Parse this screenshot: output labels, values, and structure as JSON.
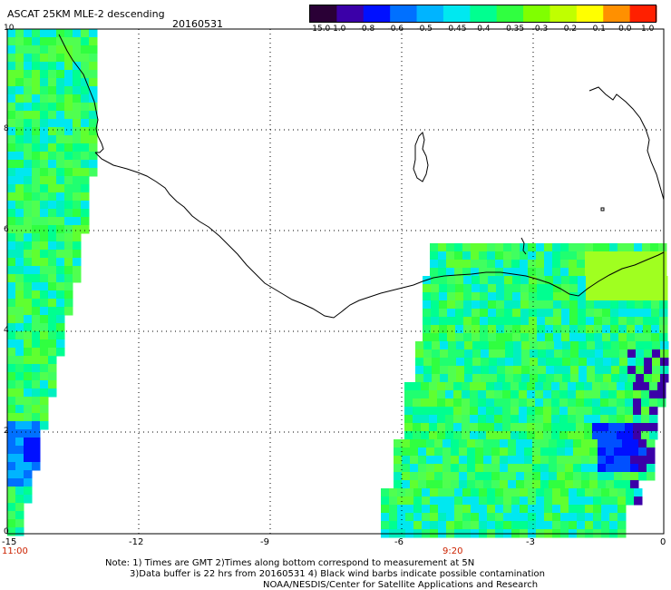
{
  "title": "ASCAT 25KM MLE-2 descending",
  "date": "20160531",
  "colorbar": {
    "labels": [
      "-15.0",
      "-1.0",
      "-0.8",
      "-0.6",
      "-0.5",
      "-0.45",
      "-0.4",
      "-0.35",
      "-0.3",
      "-0.2",
      "-0.1",
      "0.0",
      "1.0"
    ],
    "colors": [
      "#2a0036",
      "#3b00a8",
      "#0010ff",
      "#0070ff",
      "#00b4ff",
      "#00e8f0",
      "#00ff90",
      "#30ff40",
      "#80ff00",
      "#c0ff00",
      "#ffff00",
      "#ff9000",
      "#ff2000"
    ]
  },
  "axes": {
    "x_ticks": [
      "-15",
      "-12",
      "-9",
      "-6",
      "-3",
      "0"
    ],
    "y_ticks": [
      "0",
      "2",
      "4",
      "6",
      "8",
      "10"
    ]
  },
  "times": {
    "left": "11:00",
    "right": "9:20"
  },
  "notes": [
    "Note: 1) Times are GMT 2)Times along bottom correspond to measurement at 5N",
    "3)Data buffer is 22 hrs from 20160531 4) Black wind barbs indicate possible contamination",
    "NOAA/NESDIS/Center for Satellite Applications and Research"
  ]
}
